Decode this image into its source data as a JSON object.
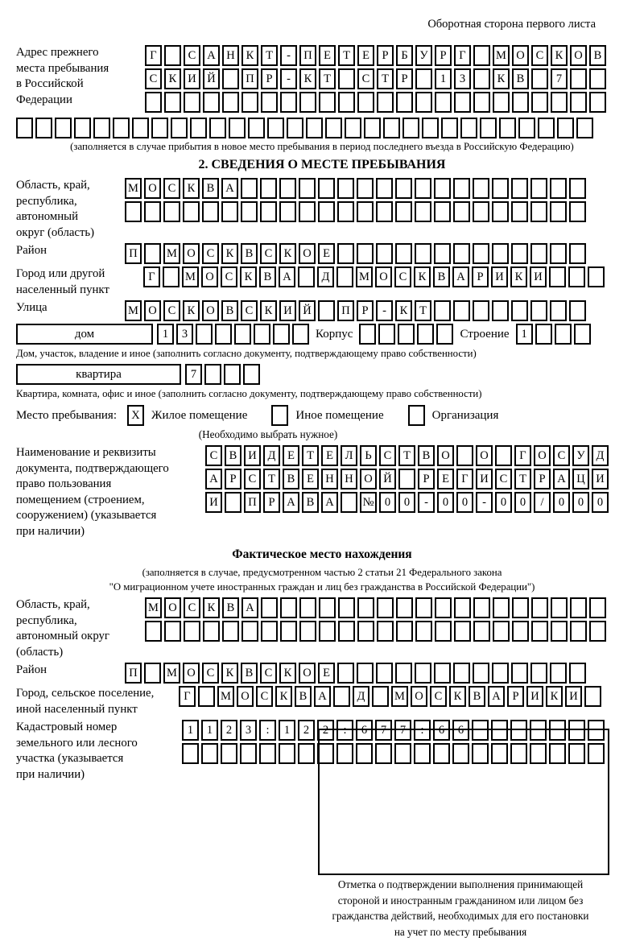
{
  "page": {
    "header_note": "Оборотная сторона первого листа"
  },
  "section1": {
    "label": [
      "Адрес прежнего",
      "места пребывания",
      "в Российской",
      "Федерации"
    ],
    "rows": [
      [
        "Г",
        "",
        "С",
        "А",
        "Н",
        "К",
        "Т",
        "-",
        "П",
        "Е",
        "Т",
        "Е",
        "Р",
        "Б",
        "У",
        "Р",
        "Г",
        "",
        "М",
        "О",
        "С",
        "К",
        "О",
        "В"
      ],
      [
        "С",
        "К",
        "И",
        "Й",
        "",
        "П",
        "Р",
        "-",
        "К",
        "Т",
        "",
        "С",
        "Т",
        "Р",
        "",
        "1",
        "3",
        "",
        "К",
        "В",
        "",
        "7",
        "",
        ""
      ],
      [
        "",
        "",
        "",
        "",
        "",
        "",
        "",
        "",
        "",
        "",
        "",
        "",
        "",
        "",
        "",
        "",
        "",
        "",
        "",
        "",
        "",
        "",
        "",
        ""
      ]
    ],
    "full_row": [
      "",
      "",
      "",
      "",
      "",
      "",
      "",
      "",
      "",
      "",
      "",
      "",
      "",
      "",
      "",
      "",
      "",
      "",
      "",
      "",
      "",
      "",
      "",
      "",
      "",
      "",
      "",
      "",
      "",
      ""
    ],
    "note": "(заполняется в случае прибытия в новое место пребывания в период последнего въезда в Российскую Федерацию)"
  },
  "section2": {
    "title": "2. СВЕДЕНИЯ О МЕСТЕ ПРЕБЫВАНИЯ",
    "region": {
      "label": [
        "Область, край,",
        "республика,",
        "автономный",
        "округ (область)"
      ],
      "row1": [
        "М",
        "О",
        "С",
        "К",
        "В",
        "А",
        "",
        "",
        "",
        "",
        "",
        "",
        "",
        "",
        "",
        "",
        "",
        "",
        "",
        "",
        "",
        "",
        "",
        ""
      ],
      "row2": [
        "",
        "",
        "",
        "",
        "",
        "",
        "",
        "",
        "",
        "",
        "",
        "",
        "",
        "",
        "",
        "",
        "",
        "",
        "",
        "",
        "",
        "",
        "",
        ""
      ]
    },
    "district": {
      "label": "Район",
      "row": [
        "П",
        "",
        "М",
        "О",
        "С",
        "К",
        "В",
        "С",
        "К",
        "О",
        "Е",
        "",
        "",
        "",
        "",
        "",
        "",
        "",
        "",
        "",
        "",
        "",
        "",
        ""
      ]
    },
    "city": {
      "label": [
        "Город или другой",
        "населенный пункт"
      ],
      "row": [
        "Г",
        "",
        "М",
        "О",
        "С",
        "К",
        "В",
        "А",
        "",
        "Д",
        "",
        "М",
        "О",
        "С",
        "К",
        "В",
        "А",
        "Р",
        "И",
        "К",
        "И",
        "",
        "",
        ""
      ]
    },
    "street": {
      "label": "Улица",
      "row": [
        "М",
        "О",
        "С",
        "К",
        "О",
        "В",
        "С",
        "К",
        "И",
        "Й",
        "",
        "П",
        "Р",
        "-",
        "К",
        "Т",
        "",
        "",
        "",
        "",
        "",
        "",
        "",
        ""
      ]
    },
    "house": {
      "box_label": "дом",
      "cells": [
        "1",
        "3",
        "",
        "",
        "",
        "",
        "",
        ""
      ],
      "korpus_label": "Корпус",
      "korpus_cells": [
        "",
        "",
        "",
        "",
        ""
      ],
      "stroenie_label": "Строение",
      "stroenie_cells": [
        "1",
        "",
        "",
        ""
      ]
    },
    "house_note": "Дом, участок, владение и иное (заполнить согласно документу, подтверждающему право собственности)",
    "apartment": {
      "box_label": "квартира",
      "cells": [
        "7",
        "",
        "",
        ""
      ]
    },
    "apartment_note": "Квартира, комната, офис и иное (заполнить согласно документу, подтверждающему право собственности)",
    "stay_place": {
      "label": "Место пребывания:",
      "options": [
        {
          "mark": "X",
          "label": "Жилое помещение"
        },
        {
          "mark": "",
          "label": "Иное помещение"
        },
        {
          "mark": "",
          "label": "Организация"
        }
      ],
      "note": "(Необходимо выбрать нужное)"
    },
    "document": {
      "label": [
        "Наименование и реквизиты",
        "документа, подтверждающего",
        "право пользования",
        "помещением (строением,",
        "сооружением) (указывается",
        "при наличии)"
      ],
      "rows": [
        [
          "С",
          "В",
          "И",
          "Д",
          "Е",
          "Т",
          "Е",
          "Л",
          "Ь",
          "С",
          "Т",
          "В",
          "О",
          "",
          "О",
          "",
          "Г",
          "О",
          "С",
          "У",
          "Д"
        ],
        [
          "А",
          "Р",
          "С",
          "Т",
          "В",
          "Е",
          "Н",
          "Н",
          "О",
          "Й",
          "",
          "Р",
          "Е",
          "Г",
          "И",
          "С",
          "Т",
          "Р",
          "А",
          "Ц",
          "И"
        ],
        [
          "И",
          "",
          "П",
          "Р",
          "А",
          "В",
          "А",
          "",
          "№",
          "0",
          "0",
          "-",
          "0",
          "0",
          "-",
          "0",
          "0",
          "/",
          "0",
          "0",
          "0"
        ]
      ]
    }
  },
  "section3": {
    "title": "Фактическое место нахождения",
    "note1": "(заполняется в случае, предусмотренном частью 2 статьи 21 Федерального закона",
    "note2": "\"О миграционном учете иностранных граждан и лиц без гражданства в Российской Федерации\")",
    "region": {
      "label": [
        "Область, край,",
        "республика,",
        "автономный округ",
        "(область)"
      ],
      "row1": [
        "М",
        "О",
        "С",
        "К",
        "В",
        "А",
        "",
        "",
        "",
        "",
        "",
        "",
        "",
        "",
        "",
        "",
        "",
        "",
        "",
        "",
        "",
        "",
        "",
        ""
      ],
      "row2": [
        "",
        "",
        "",
        "",
        "",
        "",
        "",
        "",
        "",
        "",
        "",
        "",
        "",
        "",
        "",
        "",
        "",
        "",
        "",
        "",
        "",
        "",
        "",
        ""
      ]
    },
    "district": {
      "label": "Район",
      "row": [
        "П",
        "",
        "М",
        "О",
        "С",
        "К",
        "В",
        "С",
        "К",
        "О",
        "Е",
        "",
        "",
        "",
        "",
        "",
        "",
        "",
        "",
        "",
        "",
        "",
        "",
        ""
      ]
    },
    "city": {
      "label": [
        "Город, сельское поселение,",
        "иной населенный пункт"
      ],
      "row": [
        "Г",
        "",
        "М",
        "О",
        "С",
        "К",
        "В",
        "А",
        "",
        "Д",
        "",
        "М",
        "О",
        "С",
        "К",
        "В",
        "А",
        "Р",
        "И",
        "К",
        "И",
        ""
      ]
    },
    "cadastre": {
      "label": [
        "Кадастровый номер",
        "земельного или лесного",
        "участка (указывается",
        "при наличии)"
      ],
      "row1": [
        "1",
        "1",
        "2",
        "3",
        ":",
        "1",
        "2",
        "2",
        ":",
        "6",
        "7",
        "7",
        ":",
        "6",
        "6",
        "",
        "",
        "",
        "",
        "",
        "",
        ""
      ],
      "row2": [
        "",
        "",
        "",
        "",
        "",
        "",
        "",
        "",
        "",
        "",
        "",
        "",
        "",
        "",
        "",
        "",
        "",
        "",
        "",
        "",
        "",
        ""
      ]
    },
    "stamp_note": [
      "Отметка о подтверждении выполнения принимающей",
      "стороной и иностранным гражданином или лицом без",
      "гражданства действий, необходимых для его постановки",
      "на учет по месту пребывания"
    ]
  }
}
